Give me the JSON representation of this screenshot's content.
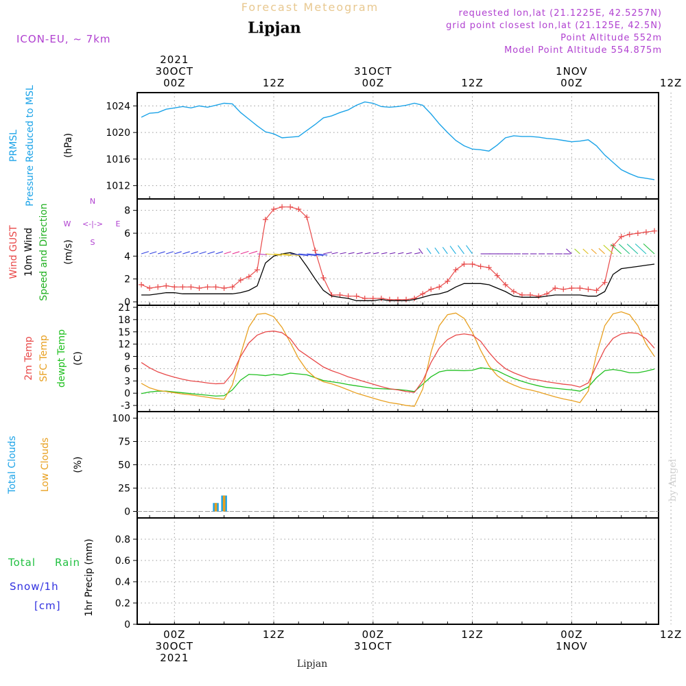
{
  "header": {
    "forecast_title": "Forecast Meteogram",
    "location": "Lipjan",
    "model": "ICON-EU, ~ 7km",
    "requested": "requested lon,lat (21.1225E, 42.5257N)",
    "grid_point": "grid point closest lon,lat (21.125E, 42.5N)",
    "point_altitude": "Point Altitude 552m",
    "model_altitude": "Model Point Altitude 554.875m",
    "footer_location": "Lipjan",
    "watermark": "by Angel"
  },
  "colors": {
    "pressure": "#1ba3e8",
    "gust": "#e84848",
    "wind": "#000000",
    "direction": "#20b020",
    "temp2m": "#e84848",
    "sfc": "#e8a020",
    "dewpt": "#20c020",
    "total_cloud": "#1ba3e8",
    "low_cloud": "#e8a020",
    "rain": "#20c040",
    "snow": "#3030e0",
    "model_text": "#b040d0"
  },
  "time_axis": {
    "top_labels": [
      {
        "lines": [
          "2021",
          "30OCT",
          "00Z"
        ]
      },
      {
        "lines": [
          "12Z"
        ]
      },
      {
        "lines": [
          "31OCT",
          "00Z"
        ]
      },
      {
        "lines": [
          "12Z"
        ]
      },
      {
        "lines": [
          "1NOV",
          "00Z"
        ]
      },
      {
        "lines": [
          "12Z"
        ]
      }
    ],
    "bottom_labels": [
      {
        "lines": [
          "00Z",
          "30OCT",
          "2021"
        ]
      },
      {
        "lines": [
          "12Z"
        ]
      },
      {
        "lines": [
          "00Z",
          "31OCT"
        ]
      },
      {
        "lines": [
          "12Z"
        ]
      },
      {
        "lines": [
          "00Z",
          "1NOV"
        ]
      },
      {
        "lines": [
          "12Z"
        ]
      }
    ],
    "major_hours": [
      0,
      12,
      24,
      36,
      48,
      60
    ],
    "range_hours": [
      -4.5,
      58.5
    ]
  },
  "panels": {
    "pressure": {
      "labels": [
        {
          "text": "PRMSL",
          "color": "#1ba3e8"
        },
        {
          "text": "Pressure Reduced to MSL",
          "color": "#1ba3e8"
        },
        {
          "text": "(hPa)",
          "color": "#000000"
        }
      ]
    },
    "wind": {
      "labels": [
        {
          "text": "Wind GUST",
          "color": "#e84848"
        },
        {
          "text": "10m Wind",
          "color": "#000000"
        },
        {
          "text": "Speed and Direction",
          "color": "#20b020"
        },
        {
          "text": "(m/s)",
          "color": "#000000"
        }
      ],
      "compass": {
        "n": "N",
        "e": "E",
        "w": "W",
        "s": "S",
        "arrows": "<-|->"
      }
    },
    "temp": {
      "labels": [
        {
          "text": "2m Temp",
          "color": "#e84848"
        },
        {
          "text": "SFC Temp",
          "color": "#e8a020"
        },
        {
          "text": "dewpt Temp",
          "color": "#20c020"
        },
        {
          "text": "(C)",
          "color": "#000000"
        }
      ]
    },
    "clouds": {
      "labels": [
        {
          "text": "Total Clouds",
          "color": "#1ba3e8"
        },
        {
          "text": "Low Clouds",
          "color": "#e8a020"
        },
        {
          "text": "(%)",
          "color": "#000000"
        }
      ]
    },
    "precip": {
      "left_labels": [
        {
          "text": "Total",
          "color": "#20c040"
        },
        {
          "text": "Rain",
          "color": "#20c040"
        },
        {
          "text": "Snow/1h",
          "color": "#3030e0"
        },
        {
          "text": "[cm]",
          "color": "#3030e0"
        }
      ],
      "axis_label": "1hr Precip (mm)"
    }
  },
  "chart_data": [
    {
      "type": "line",
      "name": "pressure",
      "ylabel": "(hPa)",
      "ylim": [
        1010,
        1026
      ],
      "yticks": [
        1012,
        1016,
        1020,
        1024
      ],
      "grid": true,
      "x": [
        -4,
        -3,
        -2,
        -1,
        0,
        1,
        2,
        3,
        4,
        5,
        6,
        7,
        8,
        9,
        10,
        11,
        12,
        13,
        14,
        15,
        16,
        17,
        18,
        19,
        20,
        21,
        22,
        23,
        24,
        25,
        26,
        27,
        28,
        29,
        30,
        31,
        32,
        33,
        34,
        35,
        36,
        37,
        38,
        39,
        40,
        41,
        42,
        43,
        44,
        45,
        46,
        47,
        48,
        49,
        50,
        51,
        52,
        53,
        54,
        55,
        56,
        57,
        58
      ],
      "values": [
        1022.3,
        1022.9,
        1023.0,
        1023.5,
        1023.7,
        1023.9,
        1023.7,
        1024.0,
        1023.8,
        1024.1,
        1024.4,
        1024.3,
        1023.0,
        1022.0,
        1021.0,
        1020.1,
        1019.8,
        1019.2,
        1019.3,
        1019.4,
        1020.3,
        1021.2,
        1022.2,
        1022.5,
        1023.0,
        1023.4,
        1024.1,
        1024.6,
        1024.4,
        1023.9,
        1023.8,
        1023.9,
        1024.1,
        1024.4,
        1024.1,
        1022.8,
        1021.3,
        1020.0,
        1018.8,
        1018.0,
        1017.5,
        1017.4,
        1017.2,
        1018.1,
        1019.2,
        1019.5,
        1019.4,
        1019.4,
        1019.3,
        1019.1,
        1019.0,
        1018.8,
        1018.6,
        1018.7,
        1018.9,
        1018.0,
        1016.6,
        1015.5,
        1014.4,
        1013.8,
        1013.3,
        1013.1,
        1012.9
      ]
    },
    {
      "type": "line",
      "name": "wind",
      "ylabel": "(m/s)",
      "ylim": [
        -0.3,
        9
      ],
      "yticks": [
        0,
        2,
        4,
        6,
        8
      ],
      "grid": true,
      "x": [
        -4,
        -3,
        -2,
        -1,
        0,
        1,
        2,
        3,
        4,
        5,
        6,
        7,
        8,
        9,
        10,
        11,
        12,
        13,
        14,
        15,
        16,
        17,
        18,
        19,
        20,
        21,
        22,
        23,
        24,
        25,
        26,
        27,
        28,
        29,
        30,
        31,
        32,
        33,
        34,
        35,
        36,
        37,
        38,
        39,
        40,
        41,
        42,
        43,
        44,
        45,
        46,
        47,
        48,
        49,
        50,
        51,
        52,
        53,
        54,
        55,
        56,
        57,
        58
      ],
      "series": [
        {
          "name": "Wind GUST",
          "marker": "plus",
          "values": [
            1.5,
            1.2,
            1.3,
            1.4,
            1.3,
            1.3,
            1.3,
            1.2,
            1.3,
            1.3,
            1.2,
            1.3,
            1.9,
            2.2,
            2.8,
            7.2,
            8.1,
            8.3,
            8.3,
            8.1,
            7.4,
            4.5,
            2.1,
            0.6,
            0.6,
            0.5,
            0.5,
            0.3,
            0.3,
            0.3,
            0.2,
            0.2,
            0.2,
            0.3,
            0.7,
            1.1,
            1.3,
            1.8,
            2.8,
            3.3,
            3.3,
            3.1,
            3.0,
            2.3,
            1.5,
            0.9,
            0.6,
            0.6,
            0.5,
            0.7,
            1.2,
            1.1,
            1.2,
            1.2,
            1.1,
            1.0,
            1.7,
            4.9,
            5.7,
            5.9,
            6.0,
            6.1,
            6.2
          ]
        },
        {
          "name": "10m Wind",
          "marker": "none",
          "values": [
            0.6,
            0.6,
            0.7,
            0.8,
            0.8,
            0.7,
            0.7,
            0.7,
            0.7,
            0.7,
            0.7,
            0.7,
            0.8,
            1.0,
            1.4,
            3.4,
            4.0,
            4.2,
            4.3,
            4.1,
            3.1,
            2.0,
            1.0,
            0.5,
            0.4,
            0.3,
            0.1,
            0.1,
            0.1,
            0.2,
            0.1,
            0.1,
            0.1,
            0.2,
            0.4,
            0.6,
            0.7,
            0.9,
            1.3,
            1.6,
            1.6,
            1.6,
            1.5,
            1.2,
            0.9,
            0.5,
            0.4,
            0.4,
            0.4,
            0.5,
            0.6,
            0.6,
            0.6,
            0.6,
            0.5,
            0.5,
            0.9,
            2.4,
            2.9,
            3.0,
            3.1,
            3.2,
            3.3
          ]
        }
      ]
    },
    {
      "type": "line",
      "name": "temperature",
      "ylabel": "(C)",
      "ylim": [
        -4.5,
        21.5
      ],
      "yticks": [
        -3,
        0,
        3,
        6,
        9,
        12,
        15,
        18,
        21
      ],
      "grid": true,
      "x": [
        -4,
        -3,
        -2,
        -1,
        0,
        1,
        2,
        3,
        4,
        5,
        6,
        7,
        8,
        9,
        10,
        11,
        12,
        13,
        14,
        15,
        16,
        17,
        18,
        19,
        20,
        21,
        22,
        23,
        24,
        25,
        26,
        27,
        28,
        29,
        30,
        31,
        32,
        33,
        34,
        35,
        36,
        37,
        38,
        39,
        40,
        41,
        42,
        43,
        44,
        45,
        46,
        47,
        48,
        49,
        50,
        51,
        52,
        53,
        54,
        55,
        56,
        57,
        58
      ],
      "series": [
        {
          "name": "2m Temp",
          "values": [
            7.5,
            6.2,
            5.2,
            4.5,
            3.9,
            3.4,
            3.0,
            2.8,
            2.5,
            2.3,
            2.4,
            4.8,
            9.0,
            12.3,
            14.2,
            15.0,
            15.2,
            14.8,
            13.3,
            10.6,
            9.2,
            7.8,
            6.4,
            5.5,
            4.8,
            4.0,
            3.4,
            2.8,
            2.2,
            1.6,
            1.1,
            0.8,
            0.4,
            0.2,
            3.0,
            7.5,
            11.0,
            13.1,
            14.2,
            14.5,
            14.2,
            12.7,
            10.0,
            7.7,
            6.0,
            5.0,
            4.2,
            3.5,
            3.2,
            2.8,
            2.5,
            2.2,
            2.0,
            1.5,
            2.5,
            6.7,
            10.8,
            13.4,
            14.5,
            14.8,
            14.6,
            13.3,
            11.0
          ]
        },
        {
          "name": "SFC Temp",
          "values": [
            2.4,
            1.3,
            0.7,
            0.4,
            0.1,
            -0.2,
            -0.4,
            -0.7,
            -1.0,
            -1.3,
            -1.5,
            2.0,
            9.5,
            16.2,
            19.3,
            19.5,
            18.7,
            16.1,
            12.4,
            8.5,
            5.6,
            3.8,
            2.8,
            2.3,
            1.6,
            0.8,
            0.0,
            -0.6,
            -1.2,
            -1.8,
            -2.3,
            -2.6,
            -3.0,
            -3.2,
            1.0,
            10.0,
            16.5,
            19.2,
            19.6,
            18.3,
            14.9,
            10.5,
            6.7,
            4.3,
            2.9,
            2.0,
            1.2,
            0.8,
            0.3,
            -0.3,
            -0.9,
            -1.4,
            -1.8,
            -2.3,
            0.5,
            9.5,
            16.5,
            19.4,
            19.9,
            19.2,
            16.5,
            12.0,
            9.0
          ]
        },
        {
          "name": "dewpt Temp",
          "values": [
            -0.1,
            0.3,
            0.5,
            0.5,
            0.3,
            0.1,
            -0.1,
            -0.3,
            -0.5,
            -0.7,
            -0.6,
            0.8,
            3.2,
            4.6,
            4.5,
            4.3,
            4.6,
            4.4,
            4.9,
            4.7,
            4.5,
            3.8,
            3.1,
            2.8,
            2.5,
            2.1,
            1.8,
            1.5,
            1.2,
            1.1,
            1.0,
            0.9,
            0.7,
            0.4,
            2.2,
            4.0,
            5.2,
            5.6,
            5.6,
            5.5,
            5.6,
            6.2,
            6.0,
            5.5,
            4.5,
            3.6,
            2.9,
            2.3,
            1.8,
            1.4,
            1.2,
            1.0,
            0.8,
            0.5,
            1.5,
            3.8,
            5.5,
            5.8,
            5.5,
            5.0,
            5.0,
            5.4,
            5.9
          ]
        }
      ]
    },
    {
      "type": "bar",
      "name": "clouds",
      "ylabel": "(%)",
      "ylim": [
        -7,
        107
      ],
      "yticks": [
        0,
        25,
        50,
        75,
        100
      ],
      "grid": true,
      "x": [
        -4,
        -3,
        -2,
        -1,
        0,
        1,
        2,
        3,
        4,
        5,
        6,
        7,
        8,
        9,
        10,
        11,
        12,
        13,
        14,
        15,
        16,
        17,
        18,
        19,
        20,
        21,
        22,
        23,
        24,
        25,
        26,
        27,
        28,
        29,
        30,
        31,
        32,
        33,
        34,
        35,
        36,
        37,
        38,
        39,
        40,
        41,
        42,
        43,
        44,
        45,
        46,
        47,
        48,
        49,
        50,
        51,
        52,
        53,
        54,
        55,
        56,
        57,
        58
      ],
      "series": [
        {
          "name": "Total Clouds",
          "values": [
            0,
            0,
            0,
            0,
            0,
            0,
            0,
            0,
            0,
            9,
            17,
            0,
            0,
            0,
            0,
            0,
            0,
            0,
            0,
            0,
            0,
            0,
            0,
            0,
            0,
            0,
            0,
            0,
            0,
            0,
            0,
            0,
            0,
            0,
            0,
            0,
            0,
            0,
            0,
            0,
            0,
            0,
            0,
            0,
            0,
            0,
            0,
            0,
            0,
            0,
            0,
            0,
            0,
            0,
            0,
            0,
            0,
            0,
            0,
            0,
            0,
            0,
            0
          ]
        },
        {
          "name": "Low Clouds",
          "values": [
            0,
            0,
            0,
            0,
            0,
            0,
            0,
            0,
            0,
            9,
            17,
            0,
            0,
            0,
            0,
            0,
            0,
            0,
            0,
            0,
            0,
            0,
            0,
            0,
            0,
            0,
            0,
            0,
            0,
            0,
            0,
            0,
            0,
            0,
            0,
            0,
            0,
            0,
            0,
            0,
            0,
            0,
            0,
            0,
            0,
            0,
            0,
            0,
            0,
            0,
            0,
            0,
            0,
            0,
            0,
            0,
            0,
            0,
            0,
            0,
            0,
            0,
            0
          ]
        }
      ]
    },
    {
      "type": "bar",
      "name": "precipitation",
      "ylabel": "1hr Precip (mm)",
      "ylim": [
        0,
        1
      ],
      "yticks": [
        0,
        0.2,
        0.4,
        0.6,
        0.8
      ],
      "grid": true,
      "series": [
        {
          "name": "Total Rain",
          "values": []
        },
        {
          "name": "Snow/1h",
          "values": []
        }
      ]
    }
  ]
}
